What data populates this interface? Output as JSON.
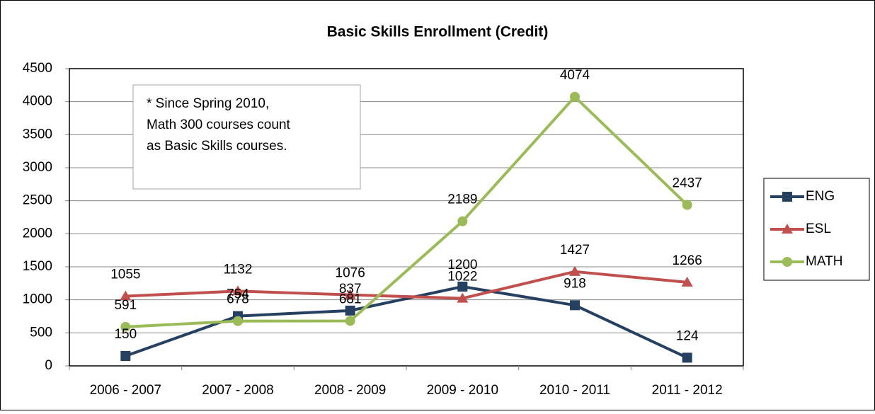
{
  "chart_data": {
    "type": "line",
    "title": "Basic Skills Enrollment (Credit)",
    "categories": [
      "2006 - 2007",
      "2007 - 2008",
      "2008 - 2009",
      "2009 - 2010",
      "2010 - 2011",
      "2011 - 2012"
    ],
    "series": [
      {
        "name": "ENG",
        "color": "#254061",
        "marker": "square",
        "values": [
          150,
          754,
          837,
          1200,
          918,
          124
        ]
      },
      {
        "name": "ESL",
        "color": "#c0504d",
        "marker": "triangle",
        "values": [
          1055,
          1132,
          1076,
          1022,
          1427,
          1266
        ]
      },
      {
        "name": "MATH",
        "color": "#9bbb59",
        "marker": "circle",
        "values": [
          591,
          678,
          681,
          2189,
          4074,
          2437
        ]
      }
    ],
    "ylim": [
      0,
      4500
    ],
    "yticks": [
      0,
      500,
      1000,
      1500,
      2000,
      2500,
      3000,
      3500,
      4000,
      4500
    ],
    "grid": true,
    "legend": "right",
    "annotation": [
      "* Since Spring 2010,",
      "Math 300 courses count",
      "as Basic Skills  courses."
    ]
  }
}
